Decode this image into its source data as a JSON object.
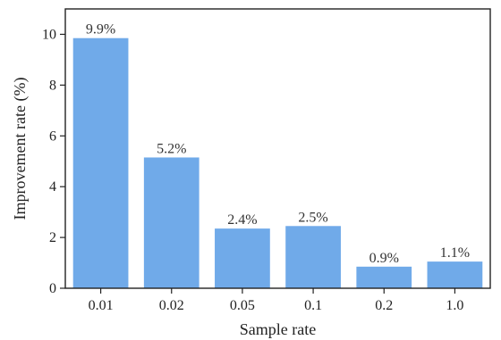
{
  "chart_data": {
    "type": "bar",
    "categories": [
      "0.01",
      "0.02",
      "0.05",
      "0.1",
      "0.2",
      "1.0"
    ],
    "values": [
      9.85,
      5.15,
      2.35,
      2.45,
      0.85,
      1.05
    ],
    "data_labels": [
      "9.9%",
      "5.2%",
      "2.4%",
      "2.5%",
      "0.9%",
      "1.1%"
    ],
    "xlabel": "Sample rate",
    "ylabel": "Improvement rate (%)",
    "ylim": [
      0,
      11
    ],
    "yticks": [
      0,
      2,
      4,
      6,
      8,
      10
    ],
    "ytick_labels": [
      "0",
      "2",
      "4",
      "6",
      "8",
      "10"
    ],
    "grid": false,
    "bar_color": "#70aae9",
    "axis_color": "#222222"
  }
}
